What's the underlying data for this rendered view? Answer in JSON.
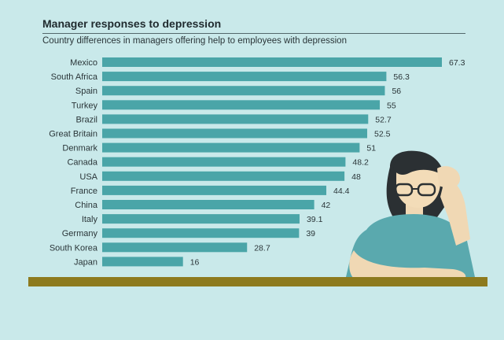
{
  "chart_data": {
    "type": "bar",
    "orientation": "horizontal",
    "title": "Manager responses to depression",
    "subtitle": "Country differences in managers offering help to employees with depression",
    "categories": [
      "Mexico",
      "South Africa",
      "Spain",
      "Turkey",
      "Brazil",
      "Great Britain",
      "Denmark",
      "Canada",
      "USA",
      "France",
      "China",
      "Italy",
      "Germany",
      "South Korea",
      "Japan"
    ],
    "values": [
      67.3,
      56.3,
      56,
      55,
      52.7,
      52.5,
      51,
      48.2,
      48,
      44.4,
      42,
      39.1,
      39,
      28.7,
      16
    ],
    "value_labels": [
      "67.3",
      "56.3",
      "56",
      "55",
      "52.7",
      "52.5",
      "51",
      "48.2",
      "48",
      "44.4",
      "42",
      "39.1",
      "39",
      "28.7",
      "16"
    ],
    "xlim": [
      0,
      67.3
    ],
    "grid": false,
    "legend": "none",
    "bar_color": "#4aa5a8",
    "background_color": "#c9e9ea",
    "floor_color": "#8d7a1e"
  }
}
